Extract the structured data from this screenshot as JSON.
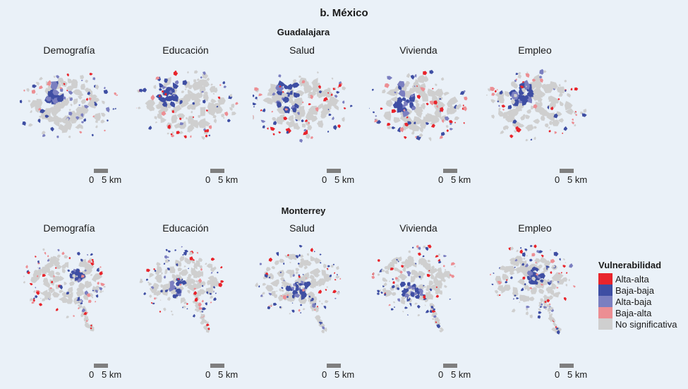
{
  "title": "b. México",
  "cities": [
    {
      "name": "Guadalajara",
      "key": "gdl"
    },
    {
      "name": "Monterrey",
      "key": "mty"
    }
  ],
  "dimensions": [
    "Demografía",
    "Educación",
    "Salud",
    "Vivienda",
    "Empleo"
  ],
  "scale": {
    "zero": "0",
    "five": "5 km"
  },
  "legend": {
    "title": "Vulnerabilidad",
    "items": [
      {
        "label": "Alta-alta",
        "color": "#e8242b"
      },
      {
        "label": "Baja-baja",
        "color": "#3e4ea3"
      },
      {
        "label": "Alta-baja",
        "color": "#7b7fc0"
      },
      {
        "label": "Baja-alta",
        "color": "#ec8e93"
      },
      {
        "label": "No significativa",
        "color": "#cfcfcf"
      }
    ]
  }
}
